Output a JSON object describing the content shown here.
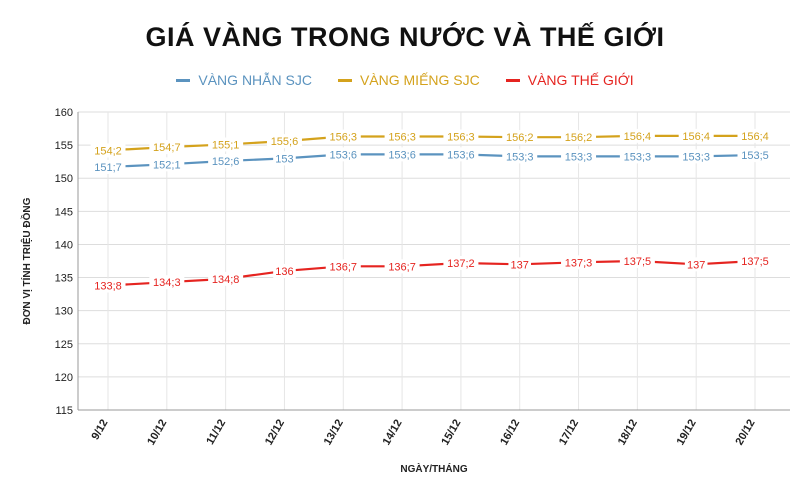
{
  "chart_data": {
    "type": "line",
    "title": "GIÁ VÀNG TRONG NƯỚC VÀ THẾ GIỚI",
    "xlabel": "NGÀY/THÁNG",
    "ylabel": "ĐƠN VỊ TÍNH TRIỆU ĐỒNG",
    "ylim": [
      115,
      160
    ],
    "yticks": [
      "160",
      "155",
      "150",
      "145",
      "140",
      "135",
      "130",
      "125",
      "120",
      "115"
    ],
    "grid": true,
    "legend_position": "top-center",
    "categories": [
      "9/12",
      "10/12",
      "11/12",
      "12/12",
      "13/12",
      "14/12",
      "15/12",
      "16/12",
      "17/12",
      "18/12",
      "19/12",
      "20/12"
    ],
    "series": [
      {
        "name": "VÀNG NHẪN SJC",
        "color": "#5b93bf",
        "values": [
          151.7,
          152.1,
          152.6,
          153,
          153.6,
          153.6,
          153.6,
          153.3,
          153.3,
          153.3,
          153.3,
          153.5
        ],
        "labels": [
          "151;7",
          "152;1",
          "152;6",
          "153",
          "153;6",
          "153;6",
          "153;6",
          "153;3",
          "153;3",
          "153;3",
          "153;3",
          "153;5"
        ]
      },
      {
        "name": "VÀNG MIẾNG SJC",
        "color": "#d4a21c",
        "values": [
          154.2,
          154.7,
          155.1,
          155.6,
          156.3,
          156.3,
          156.3,
          156.2,
          156.2,
          156.4,
          156.4,
          156.4
        ],
        "labels": [
          "154;2",
          "154;7",
          "155;1",
          "155;6",
          "156;3",
          "156;3",
          "156;3",
          "156;2",
          "156;2",
          "156;4",
          "156;4",
          "156;4"
        ]
      },
      {
        "name": "VÀNG THẾ GIỚI",
        "color": "#e52420",
        "values": [
          133.8,
          134.3,
          134.8,
          136,
          136.7,
          136.7,
          137.2,
          137,
          137.3,
          137.5,
          137,
          137.5
        ],
        "labels": [
          "133;8",
          "134;3",
          "134;8",
          "136",
          "136;7",
          "136;7",
          "137;2",
          "137",
          "137;3",
          "137;5",
          "137",
          "137;5"
        ]
      }
    ]
  }
}
